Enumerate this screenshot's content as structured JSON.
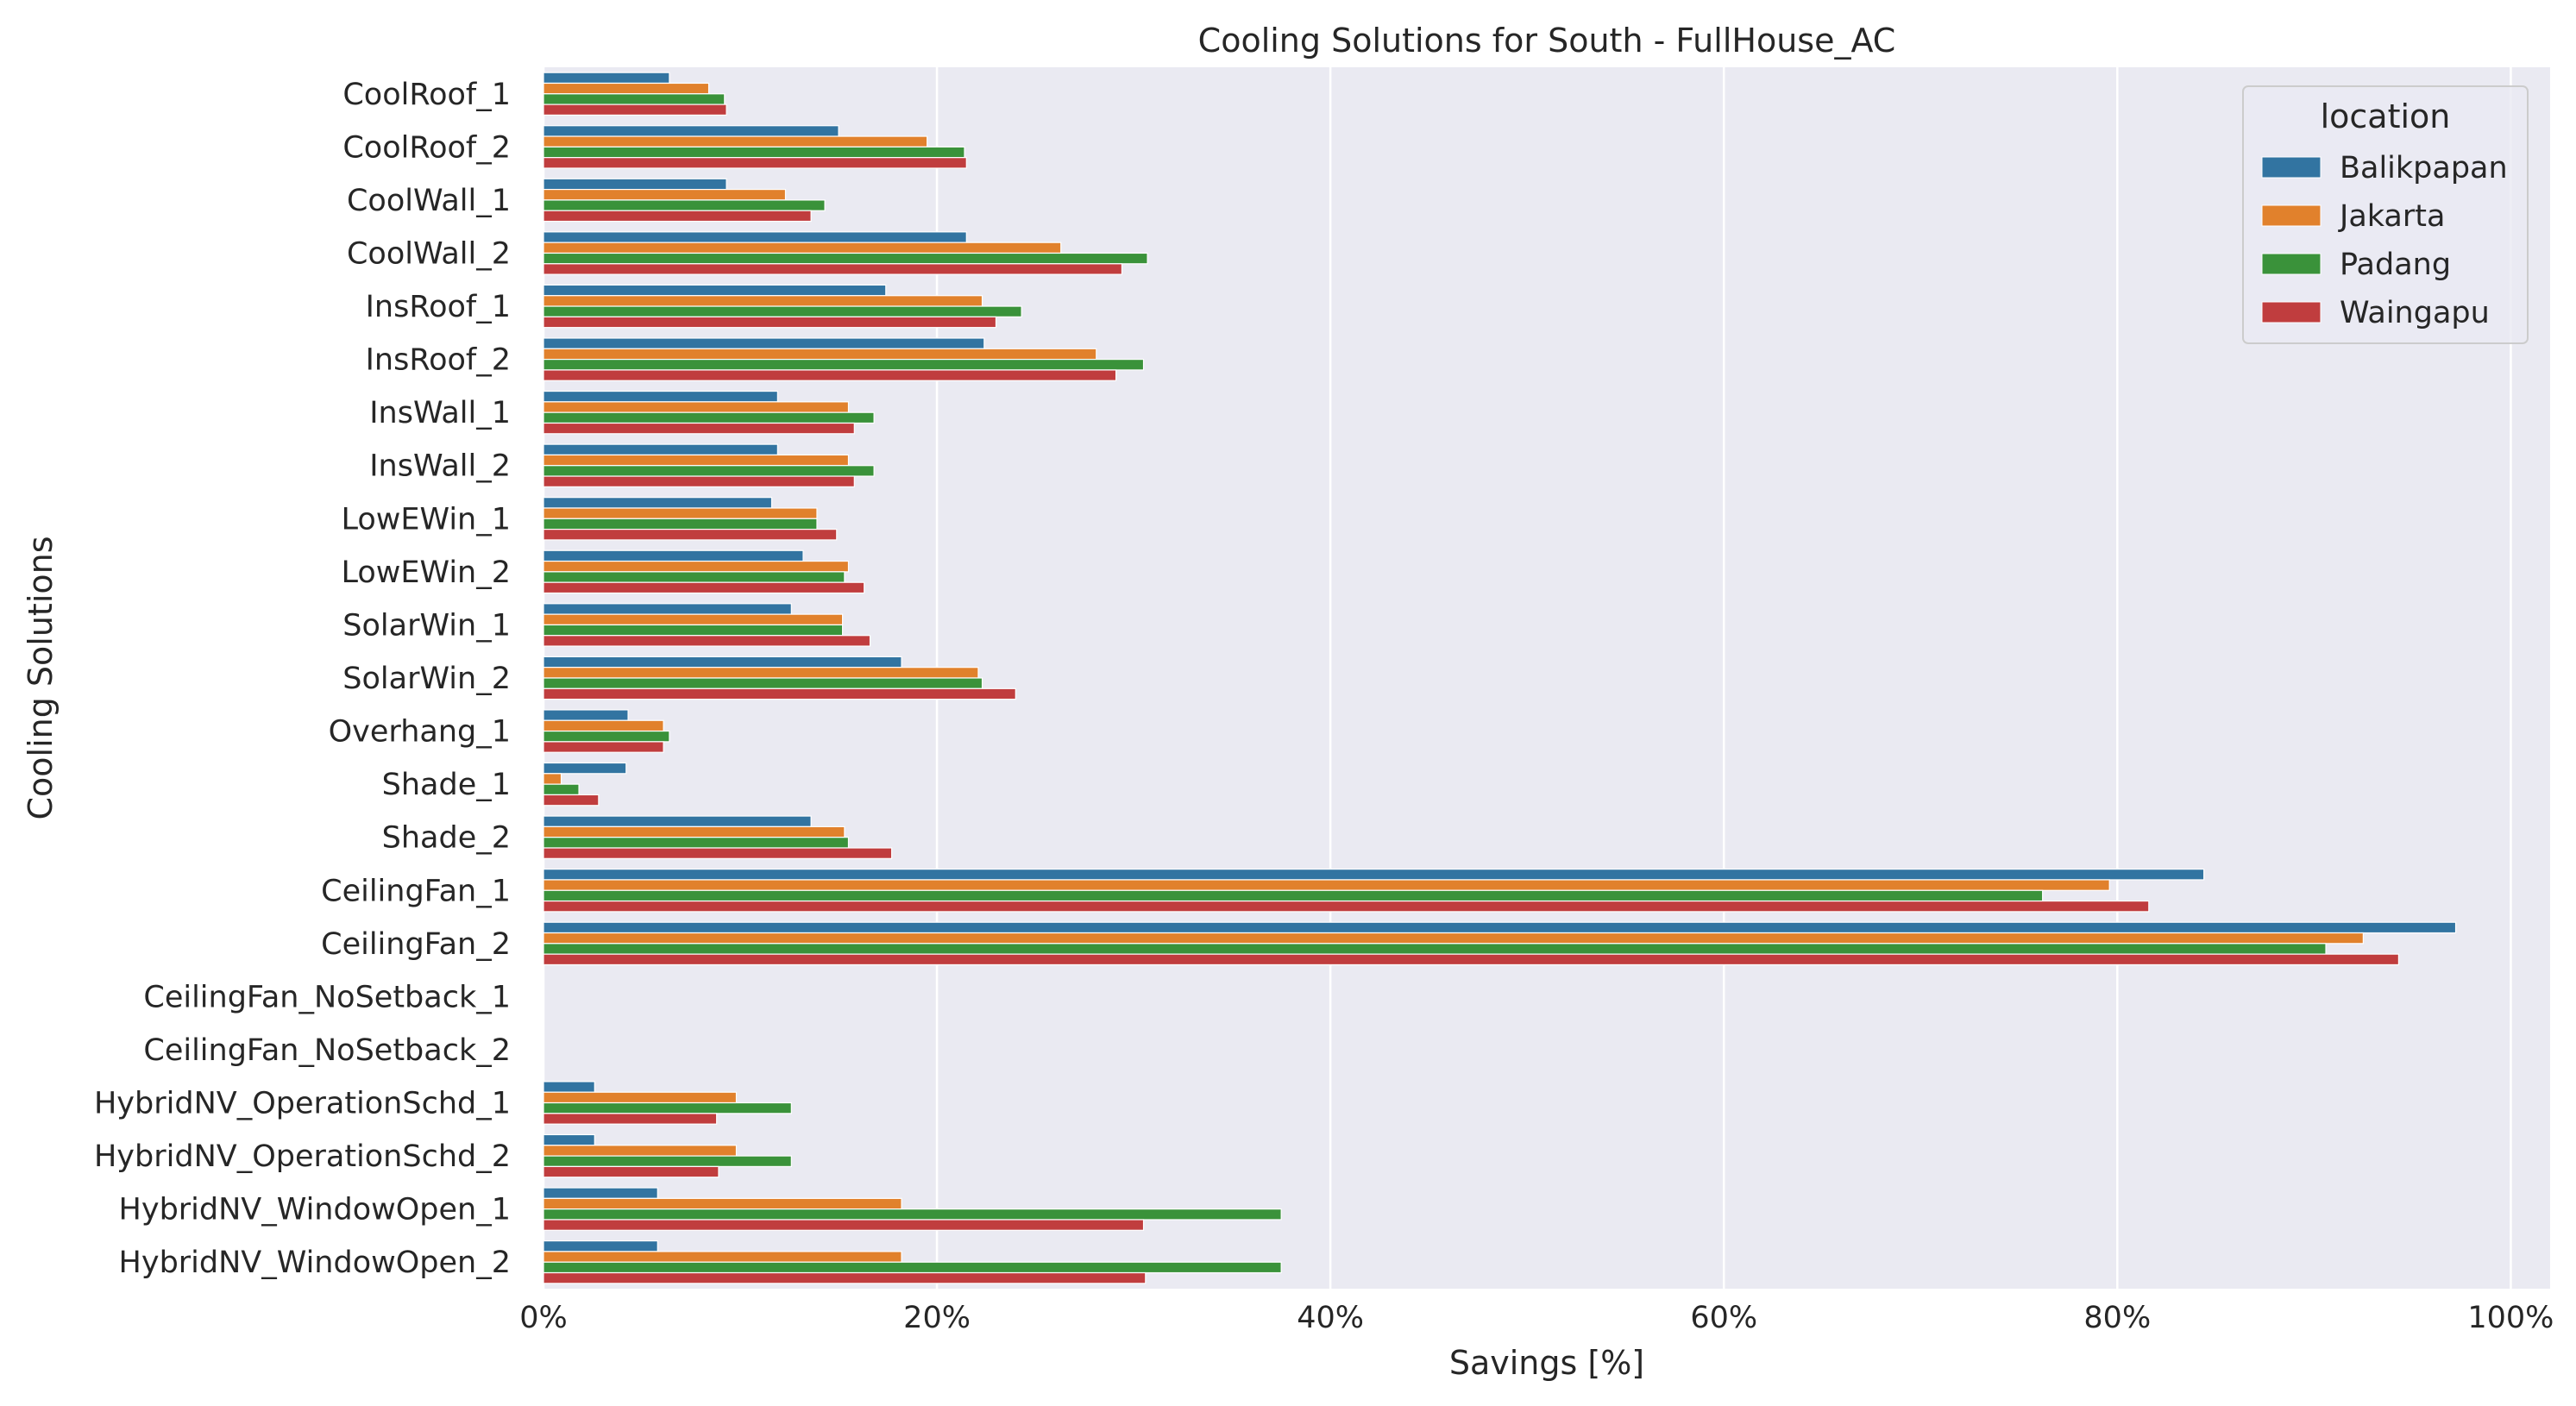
{
  "chart_data": {
    "type": "bar",
    "orientation": "horizontal",
    "title": "Cooling Solutions for South - FullHouse_AC",
    "xlabel": "Savings [%]",
    "ylabel": "Cooling Solutions",
    "xlim": [
      0,
      1.02
    ],
    "x_ticks": [
      0,
      0.2,
      0.4,
      0.6,
      0.8,
      1.0
    ],
    "x_tick_labels": [
      "0%",
      "20%",
      "40%",
      "60%",
      "80%",
      "100%"
    ],
    "grid": "vertical",
    "legend": {
      "title": "location",
      "placement": "top-right"
    },
    "categories": [
      "CoolRoof_1",
      "CoolRoof_2",
      "CoolWall_1",
      "CoolWall_2",
      "InsRoof_1",
      "InsRoof_2",
      "InsWall_1",
      "InsWall_2",
      "LowEWin_1",
      "LowEWin_2",
      "SolarWin_1",
      "SolarWin_2",
      "Overhang_1",
      "Shade_1",
      "Shade_2",
      "CeilingFan_1",
      "CeilingFan_2",
      "CeilingFan_NoSetback_1",
      "CeilingFan_NoSetback_2",
      "HybridNV_OperationSchd_1",
      "HybridNV_OperationSchd_2",
      "HybridNV_WindowOpen_1",
      "HybridNV_WindowOpen_2"
    ],
    "series": [
      {
        "name": "Balikpapan",
        "color": "#3274a1",
        "values": [
          0.064,
          0.15,
          0.093,
          0.215,
          0.174,
          0.224,
          0.119,
          0.119,
          0.116,
          0.132,
          0.126,
          0.182,
          0.043,
          0.042,
          0.136,
          0.844,
          0.972,
          null,
          null,
          0.026,
          0.026,
          0.058,
          0.058
        ]
      },
      {
        "name": "Jakarta",
        "color": "#e1812c",
        "values": [
          0.084,
          0.195,
          0.123,
          0.263,
          0.223,
          0.281,
          0.155,
          0.155,
          0.139,
          0.155,
          0.152,
          0.221,
          0.061,
          0.009,
          0.153,
          0.796,
          0.925,
          null,
          null,
          0.098,
          0.098,
          0.182,
          0.182
        ]
      },
      {
        "name": "Padang",
        "color": "#3a923a",
        "values": [
          0.092,
          0.214,
          0.143,
          0.307,
          0.243,
          0.305,
          0.168,
          0.168,
          0.139,
          0.153,
          0.152,
          0.223,
          0.064,
          0.018,
          0.155,
          0.762,
          0.906,
          null,
          null,
          0.126,
          0.126,
          0.375,
          0.375
        ]
      },
      {
        "name": "Waingapu",
        "color": "#c03d3e",
        "values": [
          0.093,
          0.215,
          0.136,
          0.294,
          0.23,
          0.291,
          0.158,
          0.158,
          0.149,
          0.163,
          0.166,
          0.24,
          0.061,
          0.028,
          0.177,
          0.816,
          0.943,
          null,
          null,
          0.088,
          0.089,
          0.305,
          0.306
        ]
      }
    ],
    "colors": {
      "plot_background": "#eaeaf2",
      "grid": "#ffffff",
      "text": "#262626"
    }
  }
}
